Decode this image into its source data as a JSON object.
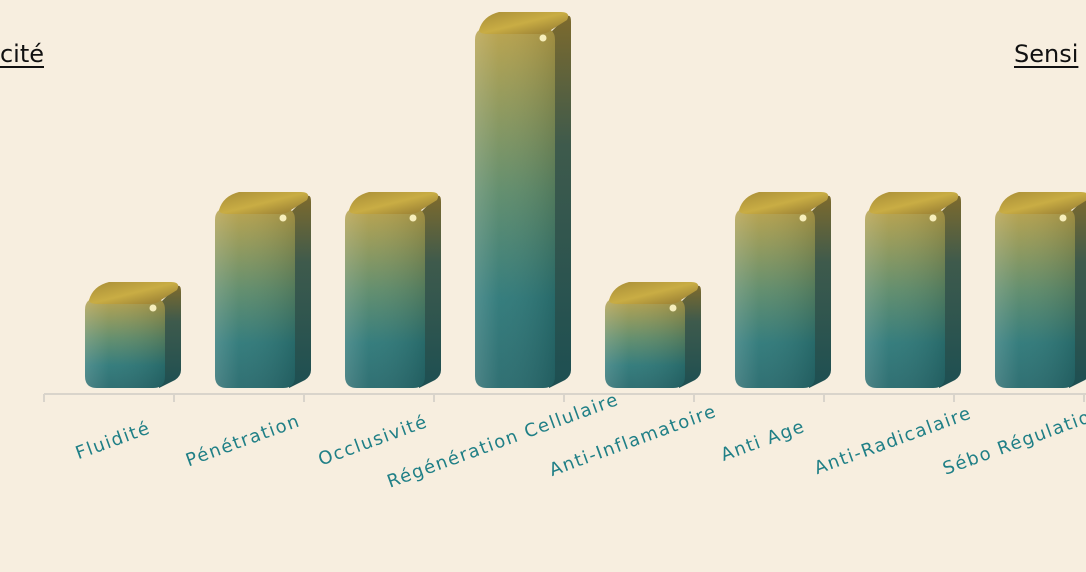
{
  "labels": {
    "left_edge": "cité",
    "right_edge": "Sensi"
  },
  "colors": {
    "background": "#f7eedf",
    "bar_top": "#b8a047",
    "bar_bottom": "#2c7777",
    "bar_shadow": "#1d4f52",
    "cap": "#c9ad44",
    "label": "#1f7f86",
    "axis": "#d9d4cb"
  },
  "chart_data": {
    "type": "bar",
    "title": "",
    "xlabel": "",
    "ylabel": "",
    "categories": [
      "Fluidité",
      "Pénétration",
      "Occlusivité",
      "Régénération Cellulaire",
      "Anti-Inflamatoire",
      "Anti Age",
      "Anti-Radicalaire",
      "Sébo Régulation"
    ],
    "values": [
      1,
      2,
      2,
      4,
      1,
      2,
      2,
      2
    ],
    "ylim": [
      0,
      4
    ],
    "grid": false,
    "legend": "none"
  }
}
